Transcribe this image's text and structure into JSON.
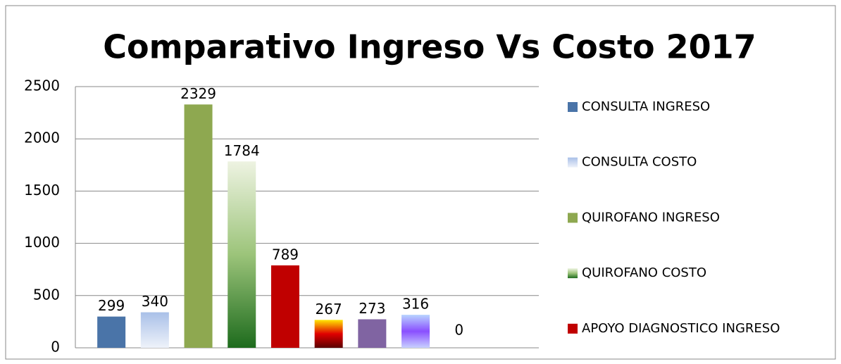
{
  "chart_data": {
    "type": "bar",
    "title": "Comparativo Ingreso Vs Costo 2017",
    "values": [
      299,
      340,
      2329,
      1784,
      789,
      267,
      273,
      316,
      0
    ],
    "colors": [
      "#4a74a8",
      [
        "#a9c0e8",
        "#eef2fa"
      ],
      "#8ea850",
      [
        "#eef3e2",
        "#9cc47a",
        "#1d6b1d"
      ],
      "#c00000",
      [
        "#ffe600",
        "#e00000",
        "#5a0000"
      ],
      "#8064a2",
      [
        "#b8d4ff",
        "#8a4fff",
        "#c8d0ff"
      ],
      "#4a74a8"
    ],
    "legend": [
      "CONSULTA INGRESO",
      "CONSULTA COSTO",
      "QUIROFANO INGRESO",
      "QUIROFANO COSTO",
      "APOYO DIAGNOSTICO INGRESO"
    ],
    "ylim": [
      0,
      2500
    ],
    "yticks": [
      0,
      500,
      1000,
      1500,
      2000,
      2500
    ],
    "grid": true
  }
}
